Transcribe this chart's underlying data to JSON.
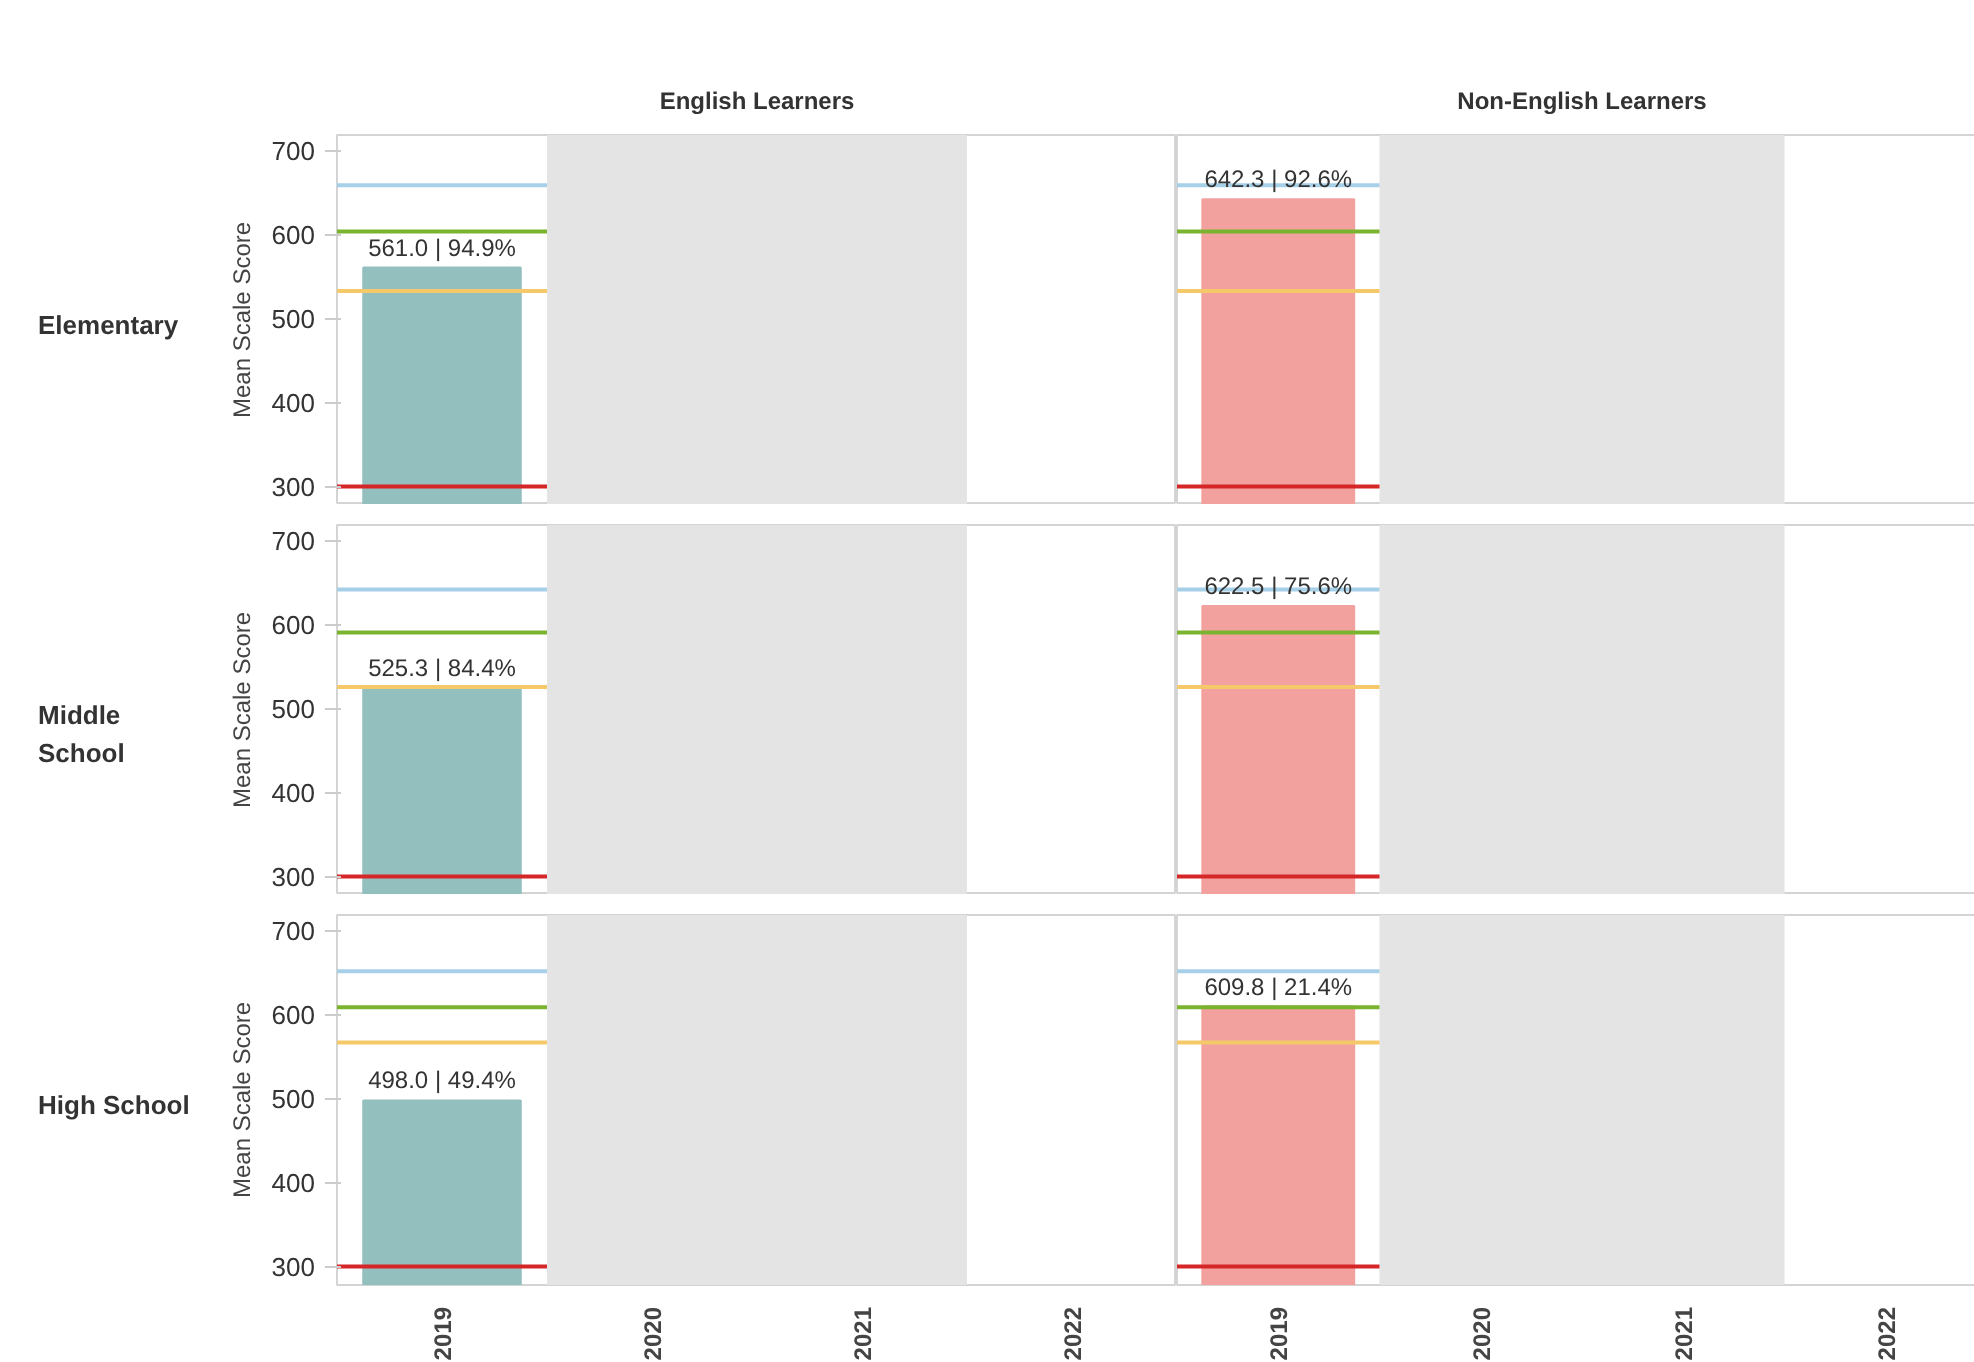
{
  "chart_data": [
    {
      "type": "bar",
      "title": "English Learners",
      "ylabel": "Mean Scale Score",
      "annotations": [
        "Elementary"
      ],
      "categories": [
        "2019",
        "2020",
        "2021",
        "2022"
      ],
      "values": [
        561.0,
        null,
        null,
        null
      ],
      "color": "#93bfbf",
      "value_labels": [
        "561.0 | 94.9%",
        null,
        null,
        null
      ],
      "ylim": [
        278,
        719
      ],
      "yticks": [
        300,
        400,
        500,
        600,
        700
      ],
      "ref_lines": [
        {
          "axis": "y",
          "value": 659,
          "color": "#a6cfe8"
        },
        {
          "axis": "y",
          "value": 604,
          "color": "#7ab32e"
        },
        {
          "axis": "y",
          "value": 533,
          "color": "#f5c96a"
        },
        {
          "axis": "y",
          "value": 300,
          "color": "#d62728"
        }
      ],
      "bands": [
        {
          "axis": "x",
          "from": "2020",
          "to": "2021",
          "color": "#e4e4e4"
        }
      ],
      "grid": false,
      "tick_labels": "y"
    },
    {
      "type": "bar",
      "title": "Non-English Learners",
      "categories": [
        "2019",
        "2020",
        "2021",
        "2022"
      ],
      "values": [
        642.3,
        null,
        null,
        null
      ],
      "color": "#f2a19e",
      "value_labels": [
        "642.3 | 92.6%",
        null,
        null,
        null
      ],
      "ylim": [
        278,
        719
      ],
      "ref_lines": [
        {
          "axis": "y",
          "value": 659,
          "color": "#a6cfe8"
        },
        {
          "axis": "y",
          "value": 604,
          "color": "#7ab32e"
        },
        {
          "axis": "y",
          "value": 533,
          "color": "#f5c96a"
        },
        {
          "axis": "y",
          "value": 300,
          "color": "#d62728"
        }
      ],
      "bands": [
        {
          "axis": "x",
          "from": "2020",
          "to": "2021",
          "color": "#e4e4e4"
        }
      ],
      "grid": false,
      "tick_labels": false
    },
    {
      "type": "bar",
      "ylabel": "Mean Scale Score",
      "annotations": [
        "Middle\nSchool"
      ],
      "categories": [
        "2019",
        "2020",
        "2021",
        "2022"
      ],
      "values": [
        525.3,
        null,
        null,
        null
      ],
      "color": "#93bfbf",
      "value_labels": [
        "525.3 | 84.4%",
        null,
        null,
        null
      ],
      "ylim": [
        278,
        719
      ],
      "yticks": [
        300,
        400,
        500,
        600,
        700
      ],
      "ref_lines": [
        {
          "axis": "y",
          "value": 642,
          "color": "#a6cfe8"
        },
        {
          "axis": "y",
          "value": 591,
          "color": "#7ab32e"
        },
        {
          "axis": "y",
          "value": 526,
          "color": "#f5c96a"
        },
        {
          "axis": "y",
          "value": 300,
          "color": "#d62728"
        }
      ],
      "bands": [
        {
          "axis": "x",
          "from": "2020",
          "to": "2021",
          "color": "#e4e4e4"
        }
      ],
      "grid": false,
      "tick_labels": "y"
    },
    {
      "type": "bar",
      "categories": [
        "2019",
        "2020",
        "2021",
        "2022"
      ],
      "values": [
        622.5,
        null,
        null,
        null
      ],
      "color": "#f2a19e",
      "value_labels": [
        "622.5 | 75.6%",
        null,
        null,
        null
      ],
      "ylim": [
        278,
        719
      ],
      "ref_lines": [
        {
          "axis": "y",
          "value": 642,
          "color": "#a6cfe8"
        },
        {
          "axis": "y",
          "value": 591,
          "color": "#7ab32e"
        },
        {
          "axis": "y",
          "value": 526,
          "color": "#f5c96a"
        },
        {
          "axis": "y",
          "value": 300,
          "color": "#d62728"
        }
      ],
      "bands": [
        {
          "axis": "x",
          "from": "2020",
          "to": "2021",
          "color": "#e4e4e4"
        }
      ],
      "grid": false,
      "tick_labels": false
    },
    {
      "type": "bar",
      "ylabel": "Mean Scale Score",
      "annotations": [
        "High School"
      ],
      "categories": [
        "2019",
        "2020",
        "2021",
        "2022"
      ],
      "values": [
        498.0,
        null,
        null,
        null
      ],
      "color": "#93bfbf",
      "value_labels": [
        "498.0 | 49.4%",
        null,
        null,
        null
      ],
      "ylim": [
        278,
        719
      ],
      "yticks": [
        300,
        400,
        500,
        600,
        700
      ],
      "ref_lines": [
        {
          "axis": "y",
          "value": 652,
          "color": "#a6cfe8"
        },
        {
          "axis": "y",
          "value": 609,
          "color": "#7ab32e"
        },
        {
          "axis": "y",
          "value": 567,
          "color": "#f5c96a"
        },
        {
          "axis": "y",
          "value": 300,
          "color": "#d62728"
        }
      ],
      "bands": [
        {
          "axis": "x",
          "from": "2020",
          "to": "2021",
          "color": "#e4e4e4"
        }
      ],
      "grid": false
    },
    {
      "type": "bar",
      "categories": [
        "2019",
        "2020",
        "2021",
        "2022"
      ],
      "values": [
        609.8,
        null,
        null,
        null
      ],
      "color": "#f2a19e",
      "value_labels": [
        "609.8 | 21.4%",
        null,
        null,
        null
      ],
      "ylim": [
        278,
        719
      ],
      "ref_lines": [
        {
          "axis": "y",
          "value": 652,
          "color": "#a6cfe8"
        },
        {
          "axis": "y",
          "value": 609,
          "color": "#7ab32e"
        },
        {
          "axis": "y",
          "value": 567,
          "color": "#f5c96a"
        },
        {
          "axis": "y",
          "value": 300,
          "color": "#d62728"
        }
      ],
      "bands": [
        {
          "axis": "x",
          "from": "2020",
          "to": "2021",
          "color": "#e4e4e4"
        }
      ],
      "grid": false,
      "tick_labels": "x"
    }
  ]
}
